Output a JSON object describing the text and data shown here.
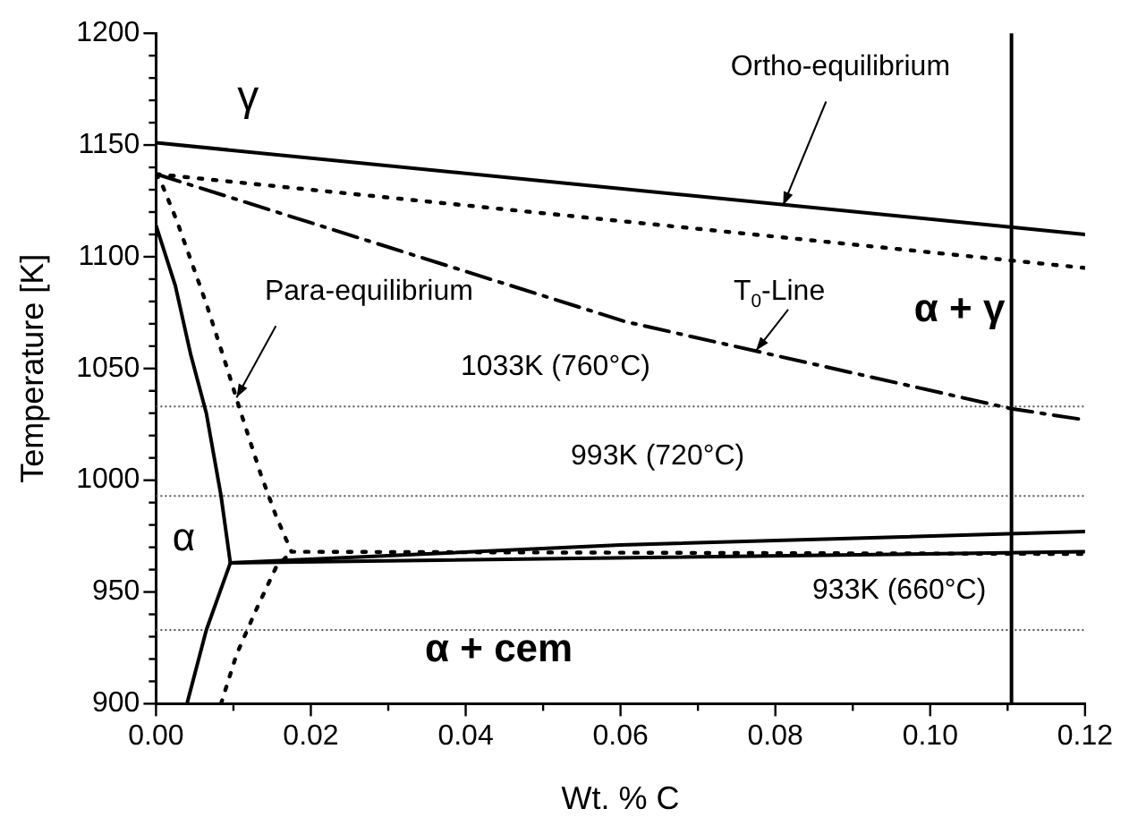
{
  "chart_data": {
    "type": "line",
    "xlabel": "Wt. % C",
    "ylabel": "Temperature [K]",
    "xlim": [
      0,
      0.12
    ],
    "ylim": [
      900,
      1200
    ],
    "xticks": [
      {
        "value": 0,
        "label": "0.00"
      },
      {
        "value": 0.01,
        "label": null
      },
      {
        "value": 0.02,
        "label": "0.02"
      },
      {
        "value": 0.03,
        "label": null
      },
      {
        "value": 0.04,
        "label": "0.04"
      },
      {
        "value": 0.05,
        "label": null
      },
      {
        "value": 0.06,
        "label": "0.06"
      },
      {
        "value": 0.07,
        "label": null
      },
      {
        "value": 0.08,
        "label": "0.08"
      },
      {
        "value": 0.09,
        "label": null
      },
      {
        "value": 0.1,
        "label": "0.10"
      },
      {
        "value": 0.11,
        "label": null
      },
      {
        "value": 0.12,
        "label": "0.12"
      }
    ],
    "yticks": [
      900,
      {
        "value": 910,
        "label": null
      },
      {
        "value": 920,
        "label": null
      },
      {
        "value": 930,
        "label": null
      },
      {
        "value": 940,
        "label": null
      },
      950,
      {
        "value": 960,
        "label": null
      },
      {
        "value": 970,
        "label": null
      },
      {
        "value": 980,
        "label": null
      },
      {
        "value": 990,
        "label": null
      },
      1000,
      {
        "value": 1010,
        "label": null
      },
      {
        "value": 1020,
        "label": null
      },
      {
        "value": 1030,
        "label": null
      },
      {
        "value": 1040,
        "label": null
      },
      1050,
      {
        "value": 1060,
        "label": null
      },
      {
        "value": 1070,
        "label": null
      },
      {
        "value": 1080,
        "label": null
      },
      {
        "value": 1090,
        "label": null
      },
      1100,
      {
        "value": 1110,
        "label": null
      },
      {
        "value": 1120,
        "label": null
      },
      {
        "value": 1130,
        "label": null
      },
      {
        "value": 1140,
        "label": null
      },
      1150,
      {
        "value": 1160,
        "label": null
      },
      {
        "value": 1170,
        "label": null
      },
      {
        "value": 1180,
        "label": null
      },
      {
        "value": 1190,
        "label": null
      },
      1200
    ],
    "grid": false,
    "legend": false,
    "marker": "none",
    "series": [
      {
        "color": "#000000",
        "line_style": "solid",
        "x": [
          0,
          0.12
        ],
        "values": [
          1151,
          1110
        ]
      },
      {
        "color": "#000000",
        "line_style": "dotted",
        "x": [
          0,
          0.12
        ],
        "values": [
          1137,
          1095
        ]
      },
      {
        "color": "#000000",
        "line_style": "dashdot",
        "x": [
          0,
          0.0606,
          0.1105,
          0.12
        ],
        "values": [
          1137,
          1071,
          1032,
          1027
        ]
      },
      {
        "color": "#000000",
        "line_style": "solid",
        "x": [
          0,
          0.0025,
          0.0045,
          0.0065,
          0.0084,
          0.0096,
          0.0065,
          0.004
        ],
        "values": [
          1114,
          1087,
          1056,
          1030,
          993,
          963,
          933,
          900
        ]
      },
      {
        "color": "#000000",
        "line_style": "solid",
        "x": [
          0.0096,
          0.06,
          0.12
        ],
        "values": [
          963,
          971,
          977
        ]
      },
      {
        "color": "#000000",
        "line_style": "solid",
        "x": [
          0.0096,
          0.12
        ],
        "values": [
          963,
          968
        ]
      },
      {
        "color": "#000000",
        "line_style": "dotted",
        "x": [
          0,
          0.0007,
          0.0027,
          0.0065,
          0.0092,
          0.0108,
          0.0135,
          0.0155,
          0.0175,
          0.12
        ],
        "values": [
          1137,
          1133,
          1116,
          1079,
          1050,
          1032,
          1003,
          984,
          968,
          967
        ]
      },
      {
        "color": "#000000",
        "line_style": "dotted",
        "x": [
          0.0084,
          0.0104,
          0.0128,
          0.0155,
          0.0175
        ],
        "values": [
          900,
          922,
          941,
          961,
          968
        ]
      }
    ],
    "ref_lines": [
      {
        "axis": "y",
        "value": 1033,
        "label": "1033K (760°C)",
        "color": "#555555",
        "line_style": "dotted"
      },
      {
        "axis": "y",
        "value": 993,
        "label": "993K (720°C)",
        "color": "#555555",
        "line_style": "dotted"
      },
      {
        "axis": "y",
        "value": 933,
        "label": "933K (660°C)",
        "color": "#555555",
        "line_style": "dotted"
      },
      {
        "axis": "x",
        "value": 0.1105,
        "color": "#000000",
        "line_style": "solid"
      }
    ],
    "annotations": [
      "γ",
      {
        "text": "Ortho-equilibrium",
        "x": 0.081,
        "y": 1123
      },
      {
        "text": "Para-equilibrium",
        "x": 0.0104,
        "y": 1037
      },
      {
        "text": "T$_{0}$-Line",
        "x": 0.0775,
        "y": 1058
      },
      "α + γ",
      "α",
      "α + cem"
    ]
  }
}
